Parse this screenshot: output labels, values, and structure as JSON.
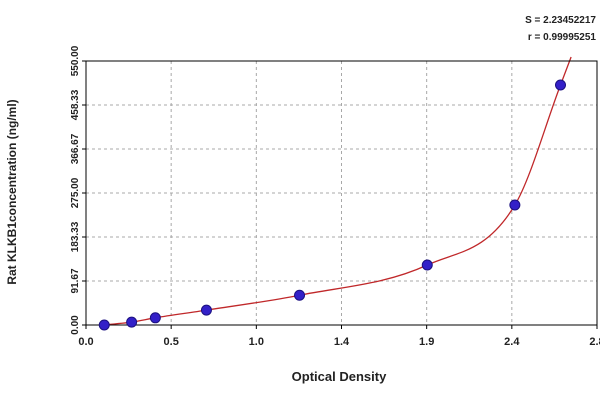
{
  "chart_data": {
    "type": "scatter",
    "title": "",
    "xlabel": "Optical Density",
    "ylabel": "Rat KLKB1concentration (ng/ml)",
    "xlim": [
      0.0,
      2.8
    ],
    "ylim": [
      0.0,
      550.0
    ],
    "x_ticks": [
      "0.0",
      "0.5",
      "1.0",
      "1.4",
      "1.9",
      "2.4",
      "2.8"
    ],
    "y_ticks": [
      "0.00",
      "91.67",
      "183.33",
      "275.00",
      "366.67",
      "458.33",
      "550.00"
    ],
    "grid": true,
    "stats": [
      "S = 2.23452217",
      "r = 0.99995251"
    ],
    "series": [
      {
        "points": [
          {
            "x": 0.1,
            "y": 0.0
          },
          {
            "x": 0.25,
            "y": 6.0
          },
          {
            "x": 0.38,
            "y": 15.0
          },
          {
            "x": 0.66,
            "y": 31.0
          },
          {
            "x": 1.17,
            "y": 62.0
          },
          {
            "x": 1.87,
            "y": 125.0
          },
          {
            "x": 2.35,
            "y": 250.0
          },
          {
            "x": 2.6,
            "y": 500.0
          }
        ]
      }
    ],
    "colors": {
      "points": "#3320c8",
      "point_outline": "#1c1180",
      "curve": "#c0282a",
      "axis": "#000000",
      "grid": "#a8a8a8",
      "text": "#222222"
    }
  }
}
